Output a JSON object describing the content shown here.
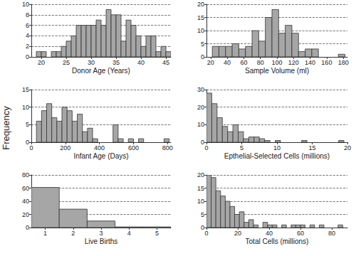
{
  "ylabel": "Frequency",
  "chart_data": [
    {
      "type": "histogram",
      "xlabel": "Donor Age (Years)",
      "color": "#a6a6a6",
      "grid": true,
      "bins": [
        19,
        20,
        21,
        22,
        23,
        24,
        25,
        26,
        27,
        28,
        29,
        30,
        31,
        32,
        33,
        34,
        35,
        36,
        37,
        38,
        39,
        40,
        41,
        42,
        43,
        44,
        45,
        46
      ],
      "counts": [
        1,
        1,
        0,
        1,
        1,
        2,
        3,
        4,
        6,
        6,
        6,
        6,
        7,
        6,
        9,
        8,
        8,
        3,
        7,
        6,
        4,
        2,
        4,
        4,
        1,
        2,
        1
      ],
      "xlim": [
        18,
        46
      ],
      "xticks": [
        20,
        25,
        30,
        35,
        40,
        45
      ],
      "ylim": [
        0,
        10
      ],
      "yticks": [
        0,
        2,
        4,
        6,
        8,
        10
      ]
    },
    {
      "type": "histogram",
      "xlabel": "Sample Volume (ml)",
      "color": "#a6a6a6",
      "grid": true,
      "bins": [
        22,
        30,
        38,
        46,
        54,
        62,
        70,
        78,
        86,
        94,
        102,
        110,
        118,
        126,
        134,
        142,
        150,
        158,
        166,
        174,
        182
      ],
      "counts": [
        4,
        4,
        4,
        5,
        3,
        4,
        10,
        6,
        15,
        18,
        9,
        12,
        9,
        2,
        3,
        3,
        0,
        0,
        0,
        1
      ],
      "xlim": [
        15,
        185
      ],
      "xticks": [
        20,
        40,
        60,
        80,
        100,
        120,
        140,
        160,
        180
      ],
      "ylim": [
        0,
        20
      ],
      "yticks": [
        0,
        5,
        10,
        15,
        20
      ]
    },
    {
      "type": "histogram",
      "xlabel": "Infant Age (Days)",
      "color": "#a6a6a6",
      "grid": true,
      "bins": [
        30,
        60,
        90,
        120,
        150,
        180,
        210,
        240,
        270,
        300,
        330,
        360,
        390,
        420,
        450,
        480,
        510,
        540,
        570,
        600,
        630,
        660,
        690,
        720,
        750,
        780,
        810
      ],
      "counts": [
        6,
        9,
        11,
        7,
        6,
        10,
        9,
        6,
        8,
        3,
        4,
        1,
        0,
        0,
        0,
        5,
        1,
        0,
        1,
        0,
        1,
        0,
        0,
        0,
        0,
        1
      ],
      "xlim": [
        0,
        820
      ],
      "xticks": [
        0,
        200,
        400,
        600,
        800
      ],
      "ylim": [
        0,
        15
      ],
      "yticks": [
        0,
        5,
        10,
        15
      ]
    },
    {
      "type": "histogram",
      "xlabel": "Epthelial-Selected Cells (millions)",
      "color": "#a6a6a6",
      "grid": true,
      "bins": [
        0,
        0.75,
        1.5,
        2.25,
        3,
        3.75,
        4.5,
        5.25,
        6,
        6.75,
        7.5,
        8.25,
        9,
        9.75,
        10.5,
        11.25,
        12,
        12.75,
        13.5,
        14.25,
        15,
        15.75,
        16.5,
        17.25,
        18,
        18.75,
        19.5
      ],
      "counts": [
        28,
        22,
        14,
        9,
        6,
        10,
        6,
        2,
        3,
        3,
        2,
        1,
        0,
        1,
        0,
        0,
        0,
        0,
        1,
        0,
        0,
        0,
        0,
        0,
        0,
        1
      ],
      "xlim": [
        0,
        20
      ],
      "xticks": [
        0,
        5,
        10,
        15,
        20
      ],
      "ylim": [
        0,
        30
      ],
      "yticks": [
        0,
        10,
        20,
        30
      ]
    },
    {
      "type": "histogram",
      "xlabel": "Live Births",
      "color": "#a6a6a6",
      "grid": true,
      "bins": [
        0.5,
        1.5,
        2.5,
        3.5,
        4.5,
        5.5
      ],
      "counts": [
        61,
        28,
        10,
        1,
        1
      ],
      "xlim": [
        0.5,
        5.5
      ],
      "xticks": [
        1,
        2,
        3,
        4,
        5
      ],
      "ylim": [
        0,
        80
      ],
      "yticks": [
        0,
        20,
        40,
        60,
        80
      ]
    },
    {
      "type": "histogram",
      "xlabel": "Total Cells (millions)",
      "color": "#a6a6a6",
      "grid": true,
      "bins": [
        0,
        3,
        6,
        9,
        12,
        15,
        18,
        21,
        24,
        27,
        30,
        33,
        36,
        39,
        42,
        45,
        48,
        51,
        54,
        57,
        60,
        63,
        66,
        69,
        72,
        75,
        78,
        81,
        84,
        87
      ],
      "counts": [
        21,
        19,
        14,
        12,
        10,
        8,
        5,
        6,
        2,
        3,
        1,
        0,
        2,
        1,
        1,
        0,
        1,
        0,
        1,
        1,
        1,
        0,
        1,
        0,
        1,
        0,
        0,
        0,
        1
      ],
      "xlim": [
        0,
        90
      ],
      "xticks": [
        0,
        20,
        40,
        60,
        80
      ],
      "ylim": [
        0,
        20
      ],
      "yticks": [
        0,
        5,
        10,
        15,
        20
      ]
    }
  ]
}
